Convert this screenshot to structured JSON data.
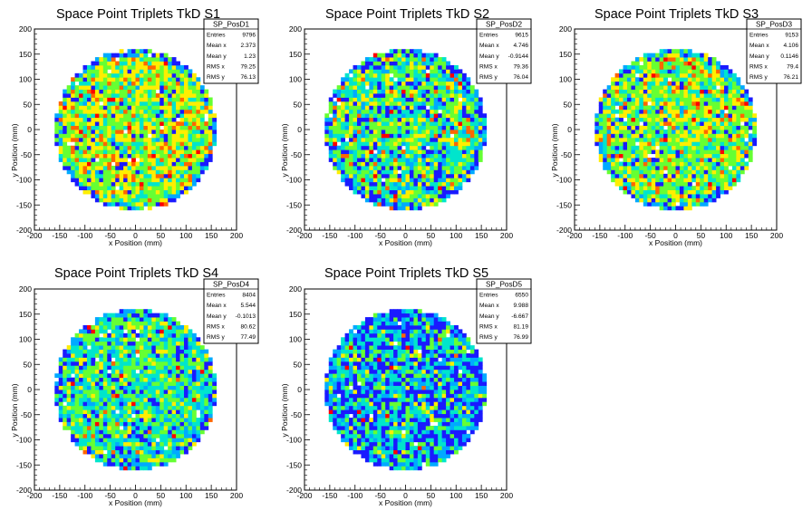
{
  "colors": {
    "palette": [
      "#1a1aff",
      "#00aaff",
      "#00e5cc",
      "#66ff33",
      "#ffee00",
      "#ff6600",
      "#ff0000"
    ],
    "axis": "#000000",
    "frame": "#000000",
    "background": "#ffffff"
  },
  "axis_labels": {
    "x": "x Position (mm)",
    "y": "y Position (mm)"
  },
  "ticks": [
    "-200",
    "-150",
    "-100",
    "-50",
    "0",
    "50",
    "100",
    "150",
    "200"
  ],
  "chart_data": [
    {
      "type": "heatmap",
      "title": "Space Point Triplets TkD S1",
      "stats": {
        "name": "SP_PosD1",
        "rows": [
          [
            "Entries",
            "9796"
          ],
          [
            "Mean x",
            "2.373"
          ],
          [
            "Mean y",
            "1.23"
          ],
          [
            "RMS x",
            "79.25"
          ],
          [
            "RMS y",
            "76.13"
          ]
        ]
      },
      "xlim": [
        -200,
        200
      ],
      "ylim": [
        -200,
        200
      ],
      "bin_size": 8,
      "radius": 160,
      "mean": 0.55,
      "spread": 0.16,
      "low_fraction": 0.06,
      "xlabel": "x Position (mm)",
      "ylabel": "y Position (mm)"
    },
    {
      "type": "heatmap",
      "title": "Space Point Triplets TkD S2",
      "stats": {
        "name": "SP_PosD2",
        "rows": [
          [
            "Entries",
            "9615"
          ],
          [
            "Mean x",
            "4.746"
          ],
          [
            "Mean y",
            "-0.9144"
          ],
          [
            "RMS x",
            "79.36"
          ],
          [
            "RMS y",
            "76.04"
          ]
        ]
      },
      "xlim": [
        -200,
        200
      ],
      "ylim": [
        -200,
        200
      ],
      "bin_size": 8,
      "radius": 160,
      "mean": 0.45,
      "spread": 0.18,
      "low_fraction": 0.12,
      "xlabel": "x Position (mm)",
      "ylabel": "y Position (mm)"
    },
    {
      "type": "heatmap",
      "title": "Space Point Triplets TkD S3",
      "stats": {
        "name": "SP_PosD3",
        "rows": [
          [
            "Entries",
            "9153"
          ],
          [
            "Mean x",
            "4.106"
          ],
          [
            "Mean y",
            "0.1146"
          ],
          [
            "RMS x",
            "79.4"
          ],
          [
            "RMS y",
            "76.21"
          ]
        ]
      },
      "xlim": [
        -200,
        200
      ],
      "ylim": [
        -200,
        200
      ],
      "bin_size": 8,
      "radius": 160,
      "mean": 0.52,
      "spread": 0.16,
      "low_fraction": 0.07,
      "xlabel": "x Position (mm)",
      "ylabel": "y Position (mm)"
    },
    {
      "type": "heatmap",
      "title": "Space Point Triplets TkD S4",
      "stats": {
        "name": "SP_PosD4",
        "rows": [
          [
            "Entries",
            "8404"
          ],
          [
            "Mean x",
            "5.544"
          ],
          [
            "Mean y",
            "-0.1013"
          ],
          [
            "RMS x",
            "80.62"
          ],
          [
            "RMS y",
            "77.49"
          ]
        ]
      },
      "xlim": [
        -200,
        200
      ],
      "ylim": [
        -200,
        200
      ],
      "bin_size": 8,
      "radius": 160,
      "mean": 0.42,
      "spread": 0.16,
      "low_fraction": 0.1,
      "xlabel": "x Position (mm)",
      "ylabel": "y Position (mm)"
    },
    {
      "type": "heatmap",
      "title": "Space Point Triplets TkD S5",
      "stats": {
        "name": "SP_PosD5",
        "rows": [
          [
            "Entries",
            "6550"
          ],
          [
            "Mean x",
            "9.988"
          ],
          [
            "Mean y",
            "-6.667"
          ],
          [
            "RMS x",
            "81.19"
          ],
          [
            "RMS y",
            "76.99"
          ]
        ]
      },
      "xlim": [
        -200,
        200
      ],
      "ylim": [
        -200,
        200
      ],
      "bin_size": 8,
      "radius": 160,
      "mean": 0.36,
      "spread": 0.18,
      "low_fraction": 0.28,
      "xlabel": "x Position (mm)",
      "ylabel": "y Position (mm)"
    }
  ]
}
